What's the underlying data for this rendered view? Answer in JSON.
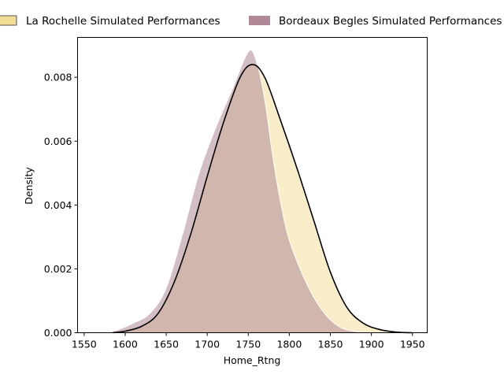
{
  "chart_data": {
    "type": "area",
    "title": "",
    "xlabel": "Home_Rtng",
    "ylabel": "Density",
    "xlim": [
      1542,
      1968
    ],
    "ylim": [
      0,
      0.00925
    ],
    "xticks": [
      "1550",
      "1600",
      "1650",
      "1700",
      "1750",
      "1800",
      "1850",
      "1900",
      "1950"
    ],
    "yticks": [
      "0.000",
      "0.002",
      "0.004",
      "0.006",
      "0.008"
    ],
    "legend_position": "top",
    "grid": false,
    "series": [
      {
        "name": "La Rochelle Simulated Performances",
        "fill_color": "#f3dd94",
        "line_color": "#000000",
        "x": [
          1585,
          1600,
          1620,
          1640,
          1660,
          1680,
          1700,
          1720,
          1740,
          1755,
          1770,
          1790,
          1810,
          1830,
          1850,
          1870,
          1890,
          1910,
          1930,
          1950
        ],
        "y": [
          0.0,
          5e-05,
          0.0002,
          0.0006,
          0.0016,
          0.0031,
          0.0049,
          0.0066,
          0.008,
          0.0084,
          0.008,
          0.0066,
          0.0051,
          0.0035,
          0.0019,
          0.0008,
          0.0003,
          0.0001,
          2e-05,
          0.0
        ]
      },
      {
        "name": "Bordeaux Begles Simulated Performances",
        "fill_color": "#b08898",
        "line_color": "#ffffff",
        "x": [
          1575,
          1590,
          1610,
          1630,
          1650,
          1670,
          1690,
          1710,
          1730,
          1750,
          1760,
          1770,
          1780,
          1790,
          1800,
          1820,
          1840,
          1860,
          1880,
          1900,
          1920
        ],
        "y": [
          0.0,
          8e-05,
          0.0003,
          0.0006,
          0.0014,
          0.0031,
          0.005,
          0.0064,
          0.0076,
          0.0088,
          0.0085,
          0.0073,
          0.0055,
          0.004,
          0.0029,
          0.0016,
          0.0007,
          0.0002,
          4e-05,
          0.0,
          0.0
        ]
      }
    ]
  }
}
